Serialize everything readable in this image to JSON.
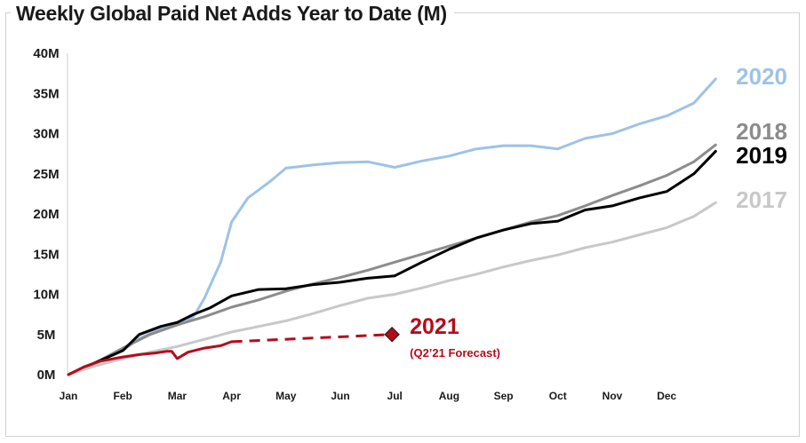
{
  "chart_data": {
    "type": "line",
    "title": "Weekly Global Paid Net Adds Year to Date (M)",
    "x_categories": [
      "Jan",
      "Feb",
      "Mar",
      "Apr",
      "May",
      "Jun",
      "Jul",
      "Aug",
      "Sep",
      "Oct",
      "Nov",
      "Dec"
    ],
    "y_ticks": [
      "0M",
      "5M",
      "10M",
      "15M",
      "20M",
      "25M",
      "30M",
      "35M",
      "40M"
    ],
    "ylim": [
      0,
      40
    ],
    "y_unit": "M",
    "grid": false,
    "legend": "labels at line ends",
    "series": [
      {
        "name": "2020",
        "color": "#9dc3e6",
        "x": [
          0,
          0.3,
          0.6,
          1.0,
          1.3,
          1.7,
          2.0,
          2.3,
          2.5,
          2.8,
          3.0,
          3.3,
          3.7,
          4.0,
          4.5,
          5.0,
          5.5,
          6.0,
          6.5,
          7.0,
          7.5,
          8.0,
          8.5,
          9.0,
          9.5,
          10.0,
          10.5,
          11.0,
          11.5,
          11.9
        ],
        "values": [
          0,
          1.0,
          1.8,
          3.0,
          4.5,
          5.7,
          6.2,
          7.2,
          9.5,
          14.0,
          19.0,
          22.0,
          24.0,
          25.7,
          26.1,
          26.4,
          26.5,
          25.8,
          26.6,
          27.2,
          28.1,
          28.5,
          28.5,
          28.1,
          29.4,
          30.0,
          31.2,
          32.2,
          33.8,
          36.8
        ]
      },
      {
        "name": "2018",
        "color": "#8c8c8c",
        "x": [
          0,
          0.5,
          1.0,
          1.5,
          2.0,
          2.5,
          3.0,
          3.5,
          4.0,
          4.5,
          5.0,
          5.5,
          6.0,
          6.5,
          7.0,
          7.5,
          8.0,
          8.5,
          9.0,
          9.5,
          10.0,
          10.5,
          11.0,
          11.5,
          11.9
        ],
        "values": [
          0,
          1.5,
          3.3,
          5.0,
          6.2,
          7.2,
          8.4,
          9.3,
          10.4,
          11.3,
          12.1,
          13.0,
          14.0,
          15.0,
          16.0,
          17.0,
          18.0,
          19.0,
          19.8,
          21.0,
          22.3,
          23.5,
          24.8,
          26.5,
          28.6
        ]
      },
      {
        "name": "2019",
        "color": "#000000",
        "x": [
          0,
          0.5,
          1.0,
          1.3,
          1.7,
          2.0,
          2.3,
          2.6,
          3.0,
          3.5,
          4.0,
          4.5,
          5.0,
          5.5,
          6.0,
          6.5,
          7.0,
          7.5,
          8.0,
          8.5,
          9.0,
          9.5,
          10.0,
          10.5,
          11.0,
          11.5,
          11.9
        ],
        "values": [
          0,
          1.5,
          3.0,
          5.0,
          6.0,
          6.5,
          7.5,
          8.3,
          9.8,
          10.6,
          10.7,
          11.2,
          11.5,
          12.0,
          12.3,
          14.0,
          15.6,
          17.0,
          18.0,
          18.8,
          19.1,
          20.5,
          21.0,
          22.0,
          22.8,
          25.0,
          27.8
        ]
      },
      {
        "name": "2017",
        "color": "#c8c8c8",
        "x": [
          0,
          0.5,
          1.0,
          1.5,
          2.0,
          2.5,
          3.0,
          3.5,
          4.0,
          4.5,
          5.0,
          5.5,
          6.0,
          6.5,
          7.0,
          7.5,
          8.0,
          8.5,
          9.0,
          9.5,
          10.0,
          10.5,
          11.0,
          11.5,
          11.9
        ],
        "values": [
          0,
          1.1,
          2.0,
          2.8,
          3.5,
          4.4,
          5.3,
          6.0,
          6.7,
          7.6,
          8.6,
          9.5,
          10.0,
          10.8,
          11.7,
          12.5,
          13.4,
          14.2,
          14.9,
          15.8,
          16.5,
          17.4,
          18.3,
          19.7,
          21.4
        ]
      },
      {
        "name": "2021",
        "color": "#b50c1a",
        "x": [
          0,
          0.3,
          0.6,
          1.0,
          1.3,
          1.6,
          1.8,
          1.9,
          2.0,
          2.2,
          2.5,
          2.8,
          3.0
        ],
        "values": [
          0,
          1.0,
          1.7,
          2.2,
          2.5,
          2.7,
          2.9,
          2.9,
          2.0,
          2.8,
          3.3,
          3.6,
          4.1
        ]
      }
    ],
    "forecast": {
      "series": "2021",
      "from": [
        3.0,
        4.1
      ],
      "to": [
        5.95,
        5.0
      ],
      "label": "2021",
      "sublabel": "(Q2’21 Forecast)"
    }
  }
}
